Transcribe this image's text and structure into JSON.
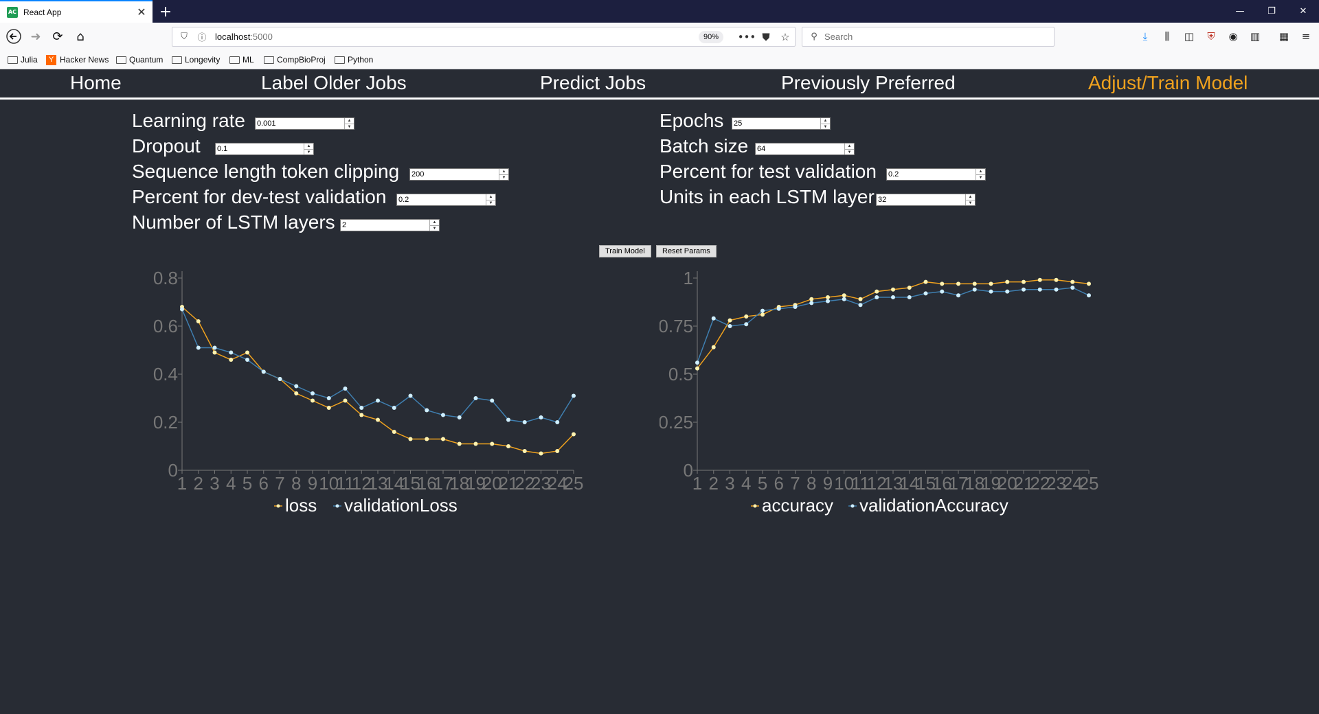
{
  "browser": {
    "tab_title": "React App",
    "tab_favicon": "AC",
    "url_host": "localhost",
    "url_port": ":5000",
    "zoom": "90%",
    "search_placeholder": "Search",
    "bookmarks": [
      "Julia",
      "Hacker News",
      "Quantum",
      "Longevity",
      "ML",
      "CompBioProj",
      "Python"
    ],
    "hn_glyph": "Y"
  },
  "nav": {
    "items": [
      "Home",
      "Label Older Jobs",
      "Predict Jobs",
      "Previously Preferred",
      "Adjust/Train Model"
    ],
    "active": "Adjust/Train Model",
    "active_color": "#f0a21e"
  },
  "params": {
    "learning_rate": {
      "label": "Learning rate",
      "value": "0.001"
    },
    "dropout": {
      "label": "Dropout",
      "value": "0.1"
    },
    "seq_clip": {
      "label": "Sequence length token clipping",
      "value": "200"
    },
    "dev_test": {
      "label": "Percent for dev-test validation",
      "value": "0.2"
    },
    "lstm_layers": {
      "label": "Number of LSTM layers",
      "value": "2"
    },
    "epochs": {
      "label": "Epochs",
      "value": "25"
    },
    "batch_size": {
      "label": "Batch size",
      "value": "64"
    },
    "test_val": {
      "label": "Percent for test validation",
      "value": "0.2"
    },
    "units": {
      "label": "Units in each LSTM layer",
      "value": "32"
    }
  },
  "buttons": {
    "train": "Train Model",
    "reset": "Reset Params"
  },
  "colors": {
    "series_primary": "#f0a21e",
    "series_secondary": "#3f7fb0",
    "dot": "#fff3b0",
    "dot_secondary": "#cfefff",
    "axis": "#777777"
  },
  "chart_data": [
    {
      "type": "line",
      "x": [
        1,
        2,
        3,
        4,
        5,
        6,
        7,
        8,
        9,
        10,
        11,
        12,
        13,
        14,
        15,
        16,
        17,
        18,
        19,
        20,
        21,
        22,
        23,
        24,
        25
      ],
      "x_tick_labels": [
        "1",
        "2",
        "3",
        "4",
        "5",
        "6",
        "7",
        "8",
        "9",
        "10",
        "11",
        "12",
        "13",
        "14",
        "15",
        "16",
        "17",
        "18",
        "19",
        "20",
        "21",
        "22",
        "23",
        "24",
        "25"
      ],
      "ylim": [
        0,
        0.8
      ],
      "yticks": [
        "0",
        "0.2",
        "0.4",
        "0.6",
        "0.8"
      ],
      "ytick_values": [
        0,
        0.2,
        0.4,
        0.6,
        0.8
      ],
      "series": [
        {
          "name": "loss",
          "values": [
            0.68,
            0.62,
            0.49,
            0.46,
            0.49,
            0.41,
            0.38,
            0.32,
            0.29,
            0.26,
            0.29,
            0.23,
            0.21,
            0.16,
            0.13,
            0.13,
            0.13,
            0.11,
            0.11,
            0.11,
            0.1,
            0.08,
            0.07,
            0.08,
            0.15
          ]
        },
        {
          "name": "validationLoss",
          "values": [
            0.67,
            0.51,
            0.51,
            0.49,
            0.46,
            0.41,
            0.38,
            0.35,
            0.32,
            0.3,
            0.34,
            0.26,
            0.29,
            0.26,
            0.31,
            0.25,
            0.23,
            0.22,
            0.3,
            0.29,
            0.21,
            0.2,
            0.22,
            0.2,
            0.31
          ]
        }
      ],
      "legend": [
        "loss",
        "validationLoss"
      ],
      "legend_position": "bottom"
    },
    {
      "type": "line",
      "x": [
        1,
        2,
        3,
        4,
        5,
        6,
        7,
        8,
        9,
        10,
        11,
        12,
        13,
        14,
        15,
        16,
        17,
        18,
        19,
        20,
        21,
        22,
        23,
        24,
        25
      ],
      "x_tick_labels": [
        "1",
        "2",
        "3",
        "4",
        "5",
        "6",
        "7",
        "8",
        "9",
        "10",
        "11",
        "12",
        "13",
        "14",
        "15",
        "16",
        "17",
        "18",
        "19",
        "20",
        "21",
        "22",
        "23",
        "24",
        "25"
      ],
      "ylim": [
        0,
        1
      ],
      "yticks": [
        "0",
        "0.25",
        "0.5",
        "0.75",
        "1"
      ],
      "ytick_values": [
        0,
        0.25,
        0.5,
        0.75,
        1
      ],
      "series": [
        {
          "name": "accuracy",
          "values": [
            0.53,
            0.64,
            0.78,
            0.8,
            0.81,
            0.85,
            0.86,
            0.89,
            0.9,
            0.91,
            0.89,
            0.93,
            0.94,
            0.95,
            0.98,
            0.97,
            0.97,
            0.97,
            0.97,
            0.98,
            0.98,
            0.99,
            0.99,
            0.98,
            0.97
          ]
        },
        {
          "name": "validationAccuracy",
          "values": [
            0.56,
            0.79,
            0.75,
            0.76,
            0.83,
            0.84,
            0.85,
            0.87,
            0.88,
            0.89,
            0.86,
            0.9,
            0.9,
            0.9,
            0.92,
            0.93,
            0.91,
            0.94,
            0.93,
            0.93,
            0.94,
            0.94,
            0.94,
            0.95,
            0.91
          ]
        }
      ],
      "legend": [
        "accuracy",
        "validationAccuracy"
      ],
      "legend_position": "bottom"
    }
  ]
}
